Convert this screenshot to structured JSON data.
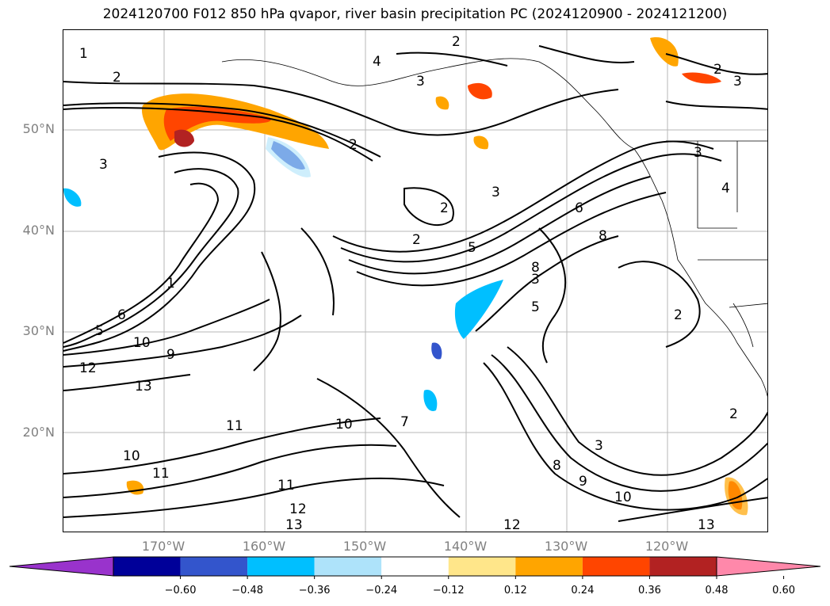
{
  "title": "2024120700 F012 850 hPa qvapor, river basin precipitation PC (2024120900 - 2024121200)",
  "map": {
    "lat_labels": [
      "50°N",
      "40°N",
      "30°N",
      "20°N"
    ],
    "lon_labels": [
      "170°W",
      "160°W",
      "150°W",
      "140°W",
      "130°W",
      "120°W"
    ],
    "contour_labels": [
      "1",
      "2",
      "3",
      "4",
      "5",
      "6",
      "7",
      "8",
      "9",
      "10",
      "11",
      "12",
      "13"
    ],
    "colors": {
      "purple": "#9933cc",
      "navy": "#000099",
      "royal_blue": "#3355cc",
      "deep_sky": "#00bfff",
      "light_blue": "#aee3fa",
      "white": "#ffffff",
      "pale_yellow": "#ffe68a",
      "orange": "#ffa500",
      "orange_red": "#ff4500",
      "firebrick": "#b22222",
      "pink": "#ff88aa"
    }
  },
  "colorbar": {
    "ticks": [
      "−0.60",
      "−0.48",
      "−0.36",
      "−0.24",
      "−0.12",
      "0.12",
      "0.24",
      "0.36",
      "0.48",
      "0.60"
    ],
    "colors": [
      "#9933cc",
      "#000099",
      "#3355cc",
      "#00bfff",
      "#aee3fa",
      "#ffffff",
      "#ffe68a",
      "#ffa500",
      "#ff4500",
      "#b22222",
      "#ff88aa"
    ]
  }
}
